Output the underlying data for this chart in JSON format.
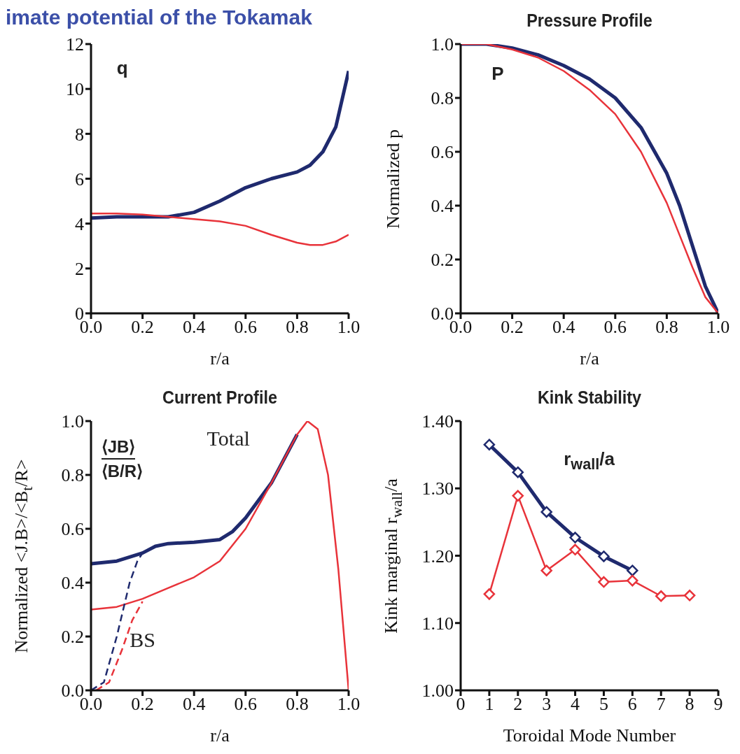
{
  "chart_data": [
    {
      "type": "line",
      "title": "imate potential of the Tokamak",
      "xlabel": "r/a",
      "annotations": [
        "q"
      ],
      "marker": "none",
      "grid": false,
      "xlim": [
        0,
        1
      ],
      "xticks": [
        {
          "value": 0,
          "label": "0.0"
        },
        {
          "value": 0.2,
          "label": "0.2"
        },
        {
          "value": 0.4,
          "label": "0.4"
        },
        {
          "value": 0.6,
          "label": "0.6"
        },
        {
          "value": 0.8,
          "label": "0.8"
        },
        {
          "value": 1,
          "label": "1.0"
        }
      ],
      "ylim": [
        0,
        12
      ],
      "yticks": [
        0,
        2,
        4,
        6,
        8,
        10,
        12
      ],
      "series": [
        {
          "color": "#1f2a6e",
          "x": [
            0,
            0.1,
            0.2,
            0.3,
            0.4,
            0.5,
            0.6,
            0.7,
            0.8,
            0.85,
            0.9,
            0.95,
            1.0
          ],
          "values": [
            4.25,
            4.3,
            4.3,
            4.3,
            4.5,
            5.0,
            5.6,
            6.0,
            6.3,
            6.6,
            7.2,
            8.3,
            10.8
          ]
        },
        {
          "color": "#e8333a",
          "x": [
            0,
            0.1,
            0.2,
            0.3,
            0.4,
            0.5,
            0.6,
            0.7,
            0.8,
            0.85,
            0.9,
            0.95,
            1.0
          ],
          "values": [
            4.45,
            4.45,
            4.4,
            4.3,
            4.2,
            4.1,
            3.9,
            3.5,
            3.15,
            3.05,
            3.05,
            3.2,
            3.5
          ]
        }
      ]
    },
    {
      "type": "line",
      "title": "Pressure Profile",
      "xlabel": "r/a",
      "ylabel": "Normalized p",
      "annotations": [
        "P"
      ],
      "marker": "none",
      "grid": false,
      "xlim": [
        0,
        1
      ],
      "xticks": [
        {
          "value": 0,
          "label": "0.0"
        },
        {
          "value": 0.2,
          "label": "0.2"
        },
        {
          "value": 0.4,
          "label": "0.4"
        },
        {
          "value": 0.6,
          "label": "0.6"
        },
        {
          "value": 0.8,
          "label": "0.8"
        },
        {
          "value": 1,
          "label": "1.0"
        }
      ],
      "ylim": [
        0,
        1
      ],
      "yticks": [
        {
          "value": 0,
          "label": "0.0"
        },
        {
          "value": 0.2,
          "label": "0.2"
        },
        {
          "value": 0.4,
          "label": "0.4"
        },
        {
          "value": 0.6,
          "label": "0.6"
        },
        {
          "value": 0.8,
          "label": "0.8"
        },
        {
          "value": 1,
          "label": "1.0"
        }
      ],
      "series": [
        {
          "color": "#1f2a6e",
          "x": [
            0,
            0.1,
            0.2,
            0.3,
            0.4,
            0.5,
            0.6,
            0.7,
            0.8,
            0.85,
            0.9,
            0.95,
            1.0
          ],
          "values": [
            1.0,
            1.0,
            0.985,
            0.96,
            0.92,
            0.87,
            0.8,
            0.69,
            0.52,
            0.4,
            0.25,
            0.1,
            0
          ]
        },
        {
          "color": "#e8333a",
          "x": [
            0,
            0.1,
            0.2,
            0.3,
            0.4,
            0.5,
            0.6,
            0.7,
            0.8,
            0.85,
            0.9,
            0.95,
            1.0
          ],
          "values": [
            1.0,
            1.0,
            0.98,
            0.95,
            0.9,
            0.83,
            0.74,
            0.6,
            0.41,
            0.29,
            0.17,
            0.06,
            0
          ]
        }
      ]
    },
    {
      "type": "line",
      "title": "Current Profile",
      "xlabel": "r/a",
      "ylabel": "Normalized <J.B>/<B$_{t}$/R>",
      "annotations": [
        "Total",
        "⟨JB⟩",
        "⟨B/R⟩",
        "BS"
      ],
      "marker": "none",
      "grid": false,
      "xlim": [
        0,
        1
      ],
      "xticks": [
        {
          "value": 0,
          "label": "0.0"
        },
        {
          "value": 0.2,
          "label": "0.2"
        },
        {
          "value": 0.4,
          "label": "0.4"
        },
        {
          "value": 0.6,
          "label": "0.6"
        },
        {
          "value": 0.8,
          "label": "0.8"
        },
        {
          "value": 1,
          "label": "1.0"
        }
      ],
      "ylim": [
        0,
        1
      ],
      "yticks": [
        {
          "value": 0,
          "label": "0.0"
        },
        {
          "value": 0.2,
          "label": "0.2"
        },
        {
          "value": 0.4,
          "label": "0.4"
        },
        {
          "value": 0.6,
          "label": "0.6"
        },
        {
          "value": 0.8,
          "label": "0.8"
        },
        {
          "value": 1,
          "label": "1.0"
        }
      ],
      "series": [
        {
          "color": "#1f2a6e",
          "x": [
            0,
            0.1,
            0.2,
            0.25,
            0.3,
            0.4,
            0.5,
            0.55,
            0.6,
            0.7,
            0.8
          ],
          "values": [
            0.47,
            0.48,
            0.51,
            0.535,
            0.545,
            0.55,
            0.56,
            0.59,
            0.64,
            0.77,
            0.95
          ]
        },
        {
          "color": "#e8333a",
          "x": [
            0,
            0.1,
            0.2,
            0.3,
            0.4,
            0.5,
            0.6,
            0.7,
            0.8,
            0.84,
            0.88,
            0.92,
            0.96,
            1.0
          ],
          "values": [
            0.3,
            0.31,
            0.34,
            0.38,
            0.42,
            0.48,
            0.6,
            0.77,
            0.95,
            1.0,
            0.97,
            0.8,
            0.45,
            0
          ]
        },
        {
          "color": "#1f2a6e",
          "line_style": "dashed",
          "x": [
            0,
            0.05,
            0.1,
            0.15,
            0.18,
            0.2
          ],
          "values": [
            0,
            0.03,
            0.2,
            0.4,
            0.48,
            0.51
          ]
        },
        {
          "color": "#e8333a",
          "line_style": "dashed",
          "x": [
            0.02,
            0.07,
            0.12,
            0.16,
            0.2
          ],
          "values": [
            0,
            0.03,
            0.15,
            0.26,
            0.33
          ]
        }
      ]
    },
    {
      "type": "line",
      "title": "Kink Stability",
      "xlabel": "Toroidal Mode Number",
      "ylabel": "Kink marginal r$_{wall}$/a",
      "annotations": [
        "r$_{wall}$/a"
      ],
      "marker": "diamond",
      "grid": false,
      "xlim": [
        0,
        9
      ],
      "xticks": [
        0,
        1,
        2,
        3,
        4,
        5,
        6,
        7,
        8,
        9
      ],
      "ylim": [
        1.0,
        1.4
      ],
      "yticks": [
        {
          "value": 1.0,
          "label": "1.00"
        },
        {
          "value": 1.1,
          "label": "1.10"
        },
        {
          "value": 1.2,
          "label": "1.20"
        },
        {
          "value": 1.3,
          "label": "1.30"
        },
        {
          "value": 1.4,
          "label": "1.40"
        }
      ],
      "series": [
        {
          "color": "#1f2a6e",
          "x": [
            1,
            2,
            3,
            4,
            5,
            6
          ],
          "values": [
            1.365,
            1.324,
            1.265,
            1.227,
            1.199,
            1.178
          ]
        },
        {
          "color": "#e8333a",
          "x": [
            1,
            2,
            3,
            4,
            5,
            6,
            7,
            8
          ],
          "values": [
            1.143,
            1.289,
            1.178,
            1.209,
            1.161,
            1.163,
            1.14,
            1.141
          ]
        }
      ]
    }
  ]
}
